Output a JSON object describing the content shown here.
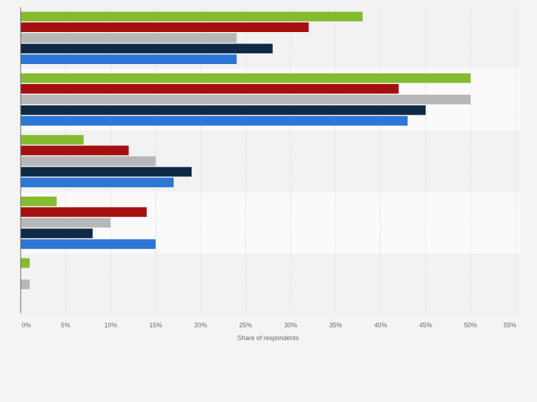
{
  "chart_data": {
    "type": "bar",
    "orientation": "horizontal",
    "categories": [
      "",
      "",
      "",
      "",
      ""
    ],
    "series": [
      {
        "color": "#85bb2f",
        "values": [
          38,
          50,
          7,
          4,
          1
        ]
      },
      {
        "color": "#a50f0f",
        "values": [
          32,
          42,
          12,
          14,
          null
        ]
      },
      {
        "color": "#b7b7b7",
        "values": [
          24,
          50,
          15,
          10,
          1
        ]
      },
      {
        "color": "#0f2a47",
        "values": [
          28,
          45,
          19,
          8,
          null
        ]
      },
      {
        "color": "#2c77d6",
        "values": [
          24,
          43,
          17,
          15,
          null
        ]
      }
    ],
    "xlabel": "Share of respondents",
    "xlim": [
      0,
      55
    ],
    "xticks": [
      "0%",
      "5%",
      "10%",
      "15%",
      "20%",
      "25%",
      "30%",
      "35%",
      "40%",
      "45%",
      "50%",
      "55%"
    ],
    "grid": true,
    "legend": "none"
  },
  "colors": {
    "background": "#f4f4f4",
    "band_light": "#fafafa",
    "band_dark": "#f2f2f2",
    "gridline": "#d9d9d9",
    "axis": "#666666",
    "tick_text": "#666666"
  }
}
